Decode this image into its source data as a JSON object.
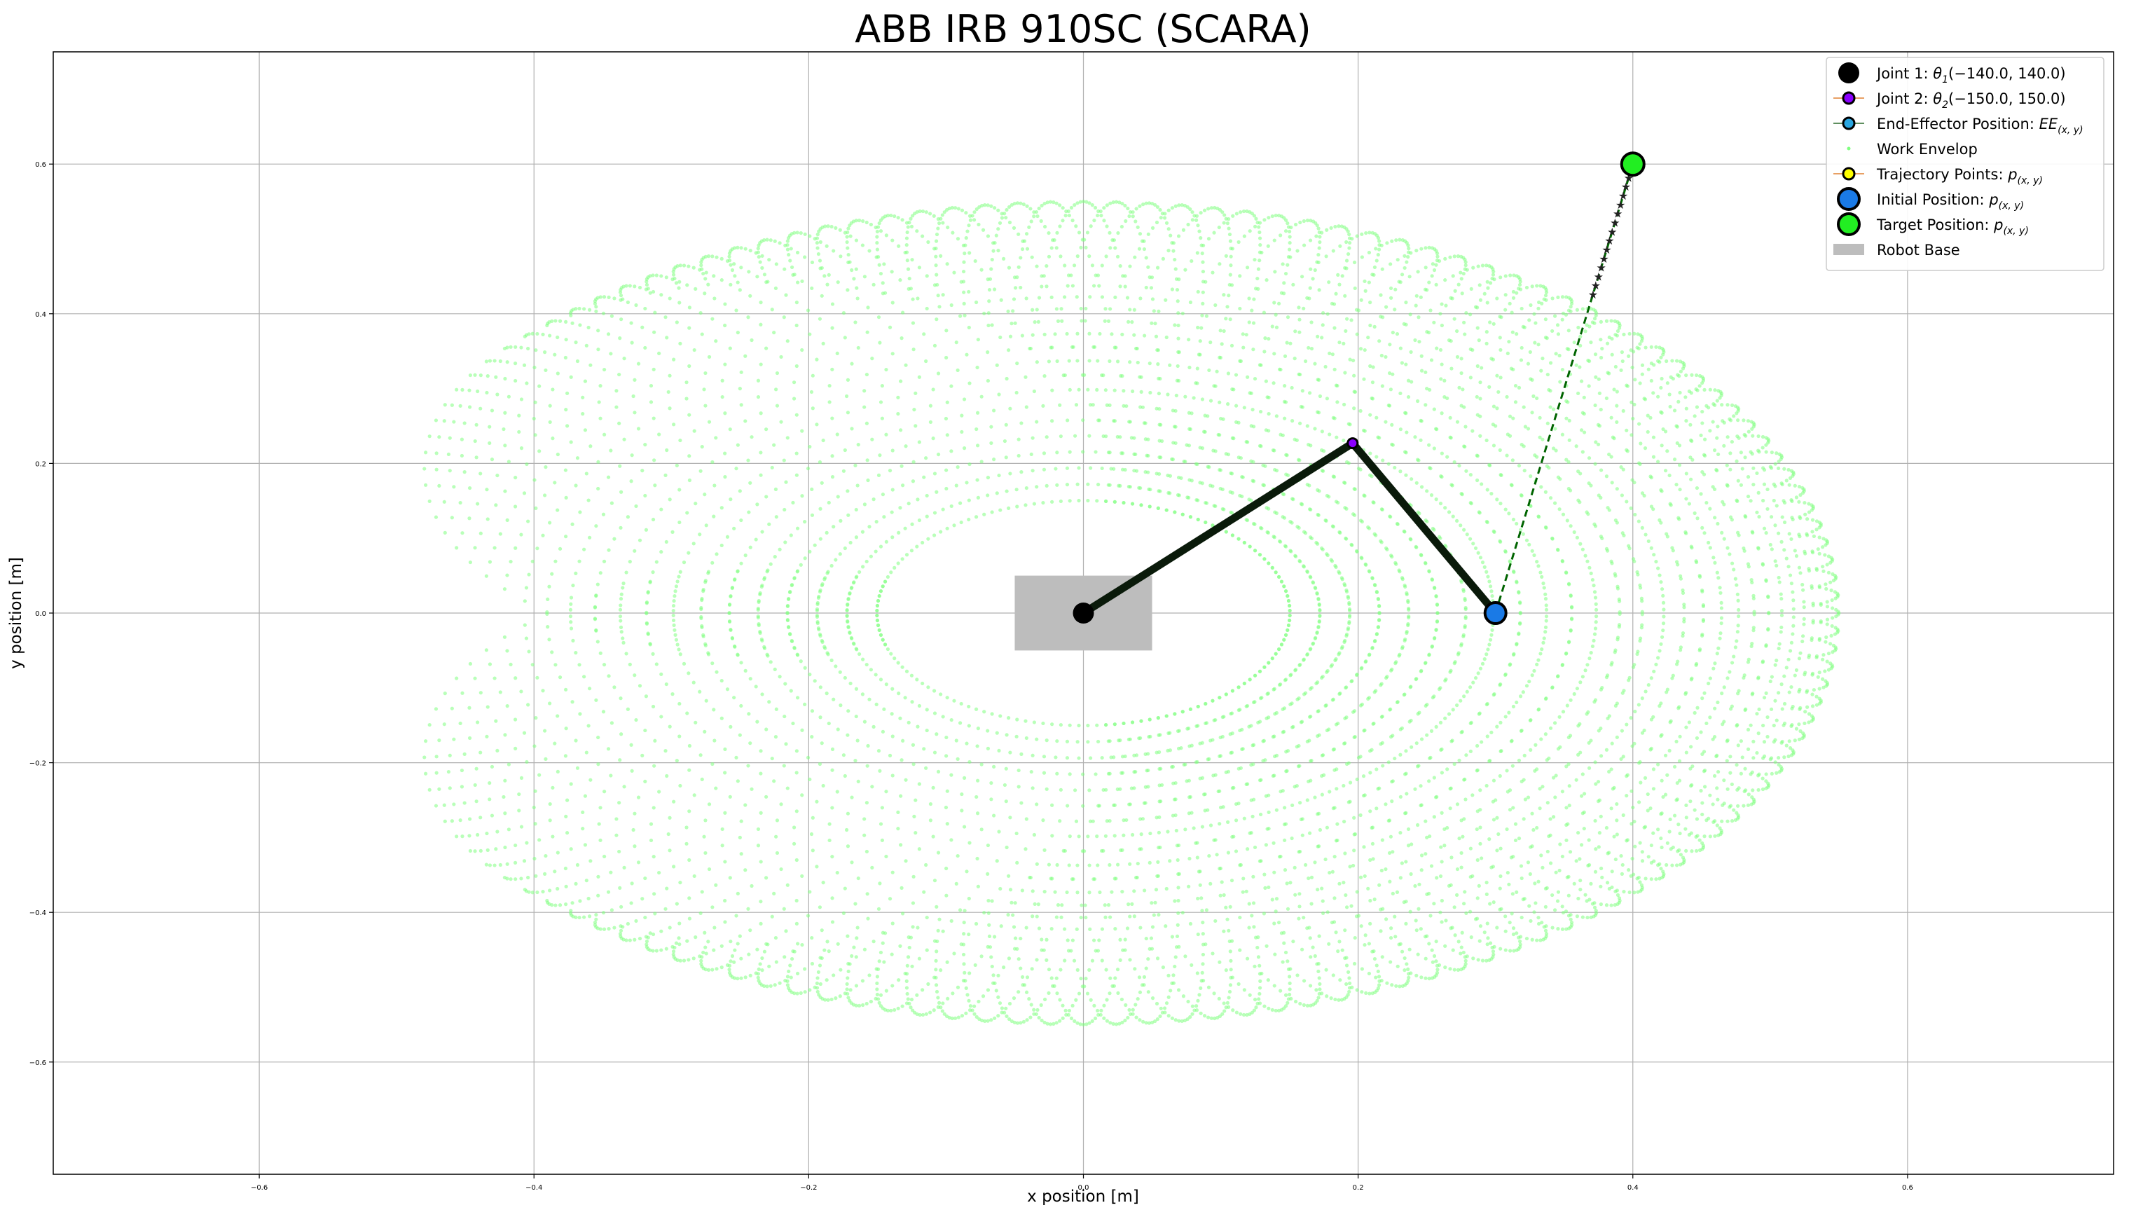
{
  "chart_data": {
    "type": "scatter",
    "title": "ABB IRB 910SC (SCARA)",
    "xlabel": "x position [m]",
    "ylabel": "y position [m]",
    "xlim": [
      -0.75,
      0.75
    ],
    "ylim": [
      -0.75,
      0.75
    ],
    "grid": true,
    "legend_position": "top-right",
    "x_ticks": [
      -0.6,
      -0.4,
      -0.2,
      0.0,
      0.2,
      0.4,
      0.6
    ],
    "y_ticks": [
      -0.6,
      -0.4,
      -0.2,
      0.0,
      0.2,
      0.4,
      0.6
    ],
    "x_tick_labels": [
      "−0.6",
      "−0.4",
      "−0.2",
      "0.0",
      "0.2",
      "0.4",
      "0.6"
    ],
    "y_tick_labels": [
      "−0.6",
      "−0.4",
      "−0.2",
      "0.0",
      "0.2",
      "0.4",
      "0.6"
    ],
    "robot": {
      "link_lengths": [
        0.3,
        0.25
      ],
      "theta1_limits_deg": [
        -140.0,
        140.0
      ],
      "theta2_limits_deg": [
        -150.0,
        150.0
      ]
    },
    "robot_base": {
      "x": [
        -0.05,
        0.05
      ],
      "y": [
        -0.05,
        0.05
      ]
    },
    "joint1": {
      "x": 0.0,
      "y": 0.0
    },
    "joint2": {
      "x": 0.196,
      "y": 0.227
    },
    "end_effector": {
      "x": 0.3,
      "y": 0.0
    },
    "initial_position": {
      "x": 0.3,
      "y": 0.0
    },
    "target_position": {
      "x": 0.4,
      "y": 0.6
    },
    "trajectory": {
      "x": [
        0.3,
        0.371,
        0.373,
        0.375,
        0.377,
        0.379,
        0.381,
        0.383,
        0.385,
        0.387,
        0.389,
        0.391,
        0.393,
        0.395,
        0.397,
        0.399,
        0.4
      ],
      "y": [
        0.0,
        0.426,
        0.438,
        0.45,
        0.462,
        0.474,
        0.486,
        0.498,
        0.51,
        0.522,
        0.534,
        0.546,
        0.558,
        0.57,
        0.582,
        0.594,
        0.6
      ]
    },
    "colors": {
      "joint1": "#000000",
      "joint2": "#8b00ff",
      "end_effector": "#0f6ff0",
      "initial_position": "#1a7ae6",
      "target_position": "#22ee22",
      "work_envelope": "#80ff80",
      "trajectory_points": "#ffff00",
      "trajectory_line": "#006400",
      "robot_base": "#bdbdbd",
      "links": "#0a1a0a"
    },
    "legend": [
      {
        "marker": "joint1",
        "main": "Joint 1: ",
        "math": "θ",
        "sub": "1",
        "rest": "(−140.0, 140.0)"
      },
      {
        "marker": "joint2",
        "main": "Joint 2: ",
        "math": "θ",
        "sub": "2",
        "rest": "(−150.0, 150.0)"
      },
      {
        "marker": "ee",
        "main": "End-Effector Position: ",
        "math": "EE",
        "sub": "(x, y)",
        "rest": ""
      },
      {
        "marker": "envelope",
        "main": "Work Envelop",
        "math": "",
        "sub": "",
        "rest": ""
      },
      {
        "marker": "trajectory",
        "main": "Trajectory Points: ",
        "math": "p",
        "sub": "(x, y)",
        "rest": ""
      },
      {
        "marker": "initial",
        "main": "Initial Position: ",
        "math": "p",
        "sub": "(x, y)",
        "rest": ""
      },
      {
        "marker": "target",
        "main": "Target Position: ",
        "math": "p",
        "sub": "(x, y)",
        "rest": ""
      },
      {
        "marker": "base",
        "main": "Robot Base",
        "math": "",
        "sub": "",
        "rest": ""
      }
    ]
  }
}
